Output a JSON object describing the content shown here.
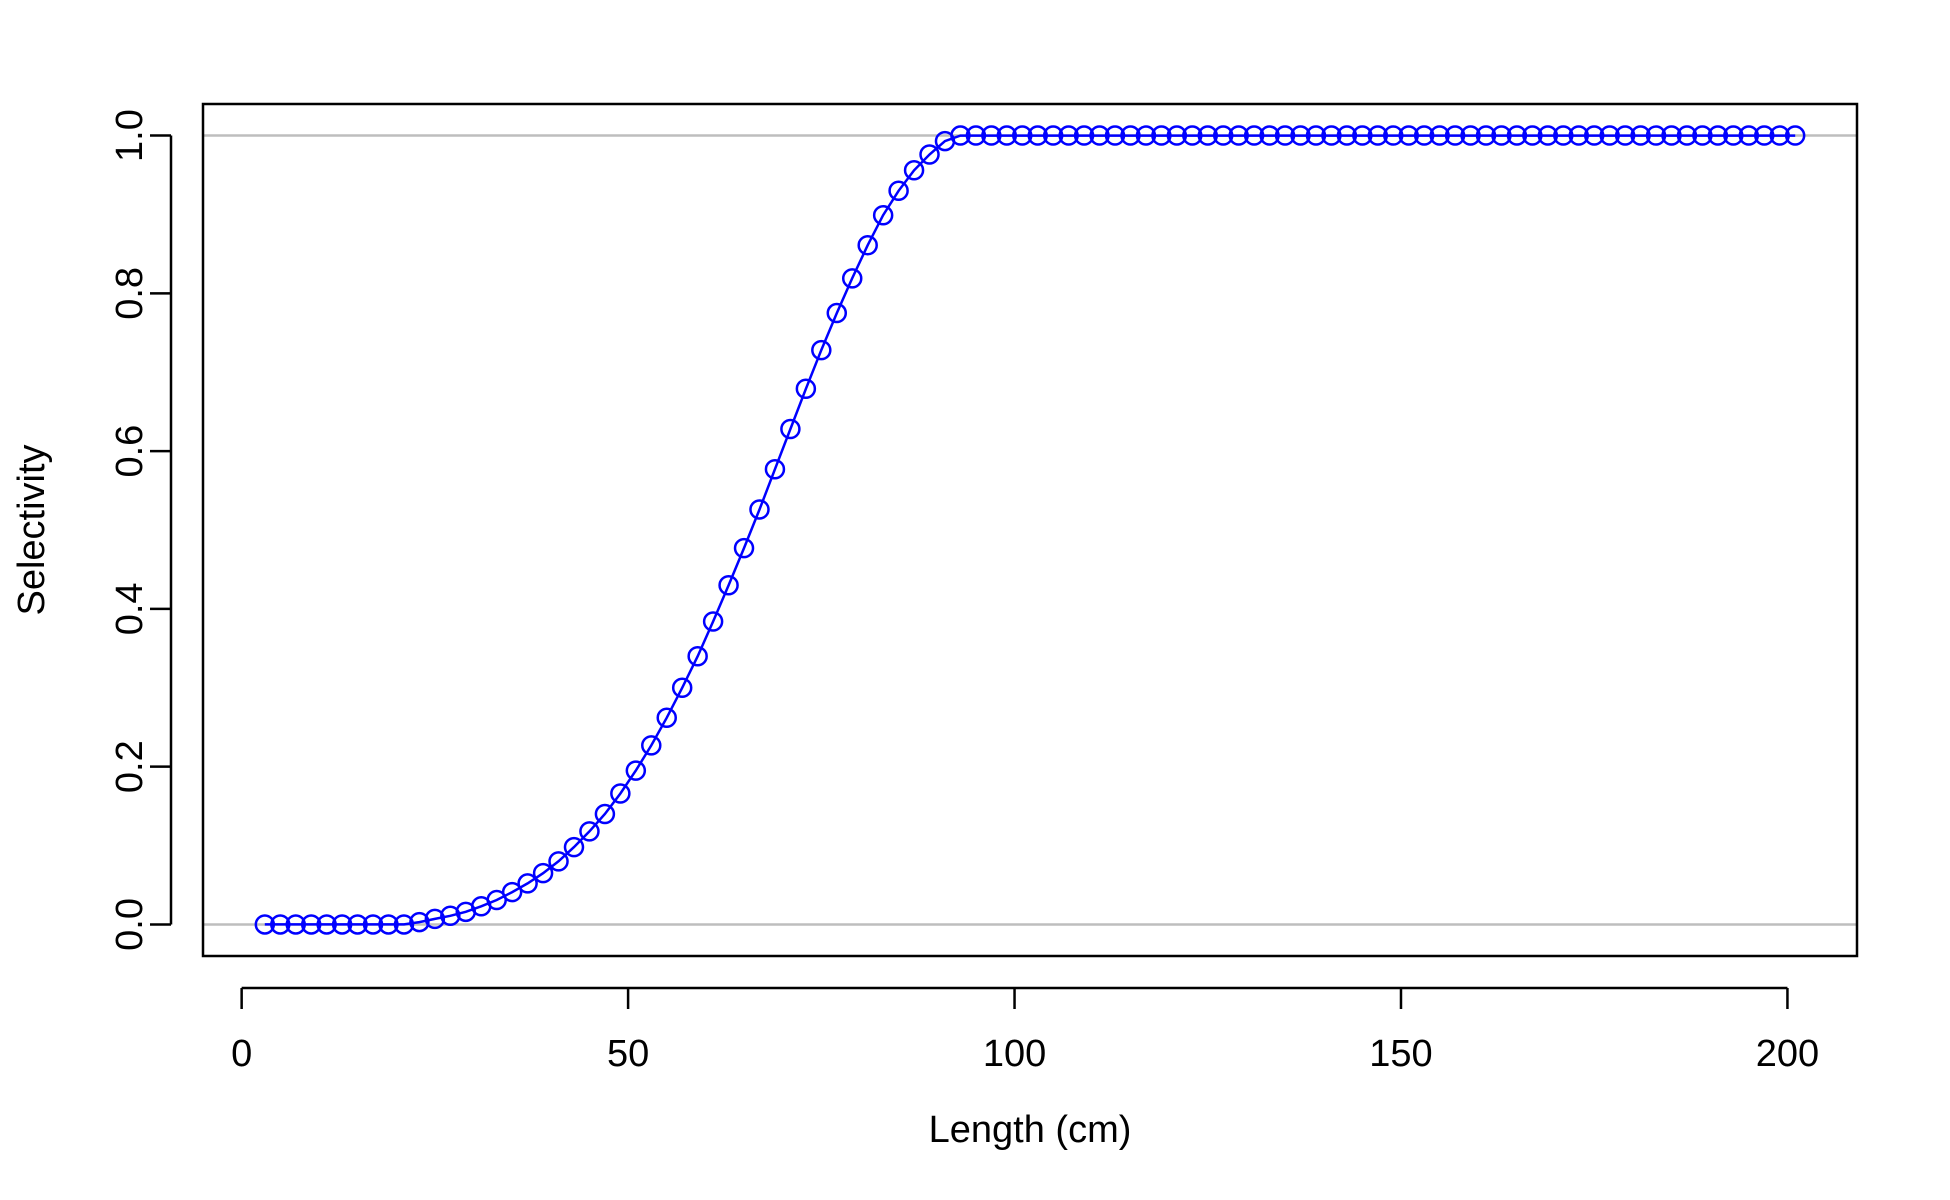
{
  "chart_data": {
    "type": "line",
    "title": "",
    "xlabel": "Length (cm)",
    "ylabel": "Selectivity",
    "xlim": [
      -5,
      209
    ],
    "ylim": [
      -0.04,
      1.04
    ],
    "x_ticks": [
      0,
      50,
      100,
      150,
      200
    ],
    "x_tick_labels": [
      "0",
      "50",
      "100",
      "150",
      "200"
    ],
    "y_ticks": [
      0.0,
      0.2,
      0.4,
      0.6,
      0.8,
      1.0
    ],
    "y_tick_labels": [
      "0.0",
      "0.2",
      "0.4",
      "0.6",
      "0.8",
      "1.0"
    ],
    "reference_lines_y": [
      0,
      1
    ],
    "legend": "none",
    "grid": false,
    "colors": {
      "series": "#0000ff",
      "reference": "#bebebe",
      "axes": "#000000"
    },
    "series": [
      {
        "marker": "open-circle",
        "x": [
          3,
          5,
          7,
          9,
          11,
          13,
          15,
          17,
          19,
          21,
          23,
          25,
          27,
          29,
          31,
          33,
          35,
          37,
          39,
          41,
          43,
          45,
          47,
          49,
          51,
          53,
          55,
          57,
          59,
          61,
          63,
          65,
          67,
          69,
          71,
          73,
          75,
          77,
          79,
          81,
          83,
          85,
          87,
          89,
          91,
          93,
          95,
          97,
          99,
          101,
          103,
          105,
          107,
          109,
          111,
          113,
          115,
          117,
          119,
          121,
          123,
          125,
          127,
          129,
          131,
          133,
          135,
          137,
          139,
          141,
          143,
          145,
          147,
          149,
          151,
          153,
          155,
          157,
          159,
          161,
          163,
          165,
          167,
          169,
          171,
          173,
          175,
          177,
          179,
          181,
          183,
          185,
          187,
          189,
          191,
          193,
          195,
          197,
          199,
          201
        ],
        "y": [
          0,
          0,
          0,
          0,
          0,
          0,
          0,
          0,
          0,
          0,
          0.003,
          0.007,
          0.011,
          0.016,
          0.023,
          0.031,
          0.041,
          0.052,
          0.065,
          0.08,
          0.098,
          0.118,
          0.14,
          0.166,
          0.195,
          0.227,
          0.262,
          0.3,
          0.34,
          0.384,
          0.43,
          0.477,
          0.526,
          0.577,
          0.628,
          0.679,
          0.728,
          0.775,
          0.819,
          0.861,
          0.899,
          0.93,
          0.956,
          0.976,
          0.993,
          1,
          1,
          1,
          1,
          1,
          1,
          1,
          1,
          1,
          1,
          1,
          1,
          1,
          1,
          1,
          1,
          1,
          1,
          1,
          1,
          1,
          1,
          1,
          1,
          1,
          1,
          1,
          1,
          1,
          1,
          1,
          1,
          1,
          1,
          1,
          1,
          1,
          1,
          1,
          1,
          1,
          1,
          1,
          1,
          1,
          1,
          1,
          1,
          1,
          1,
          1,
          1,
          1,
          1,
          1
        ]
      }
    ]
  }
}
